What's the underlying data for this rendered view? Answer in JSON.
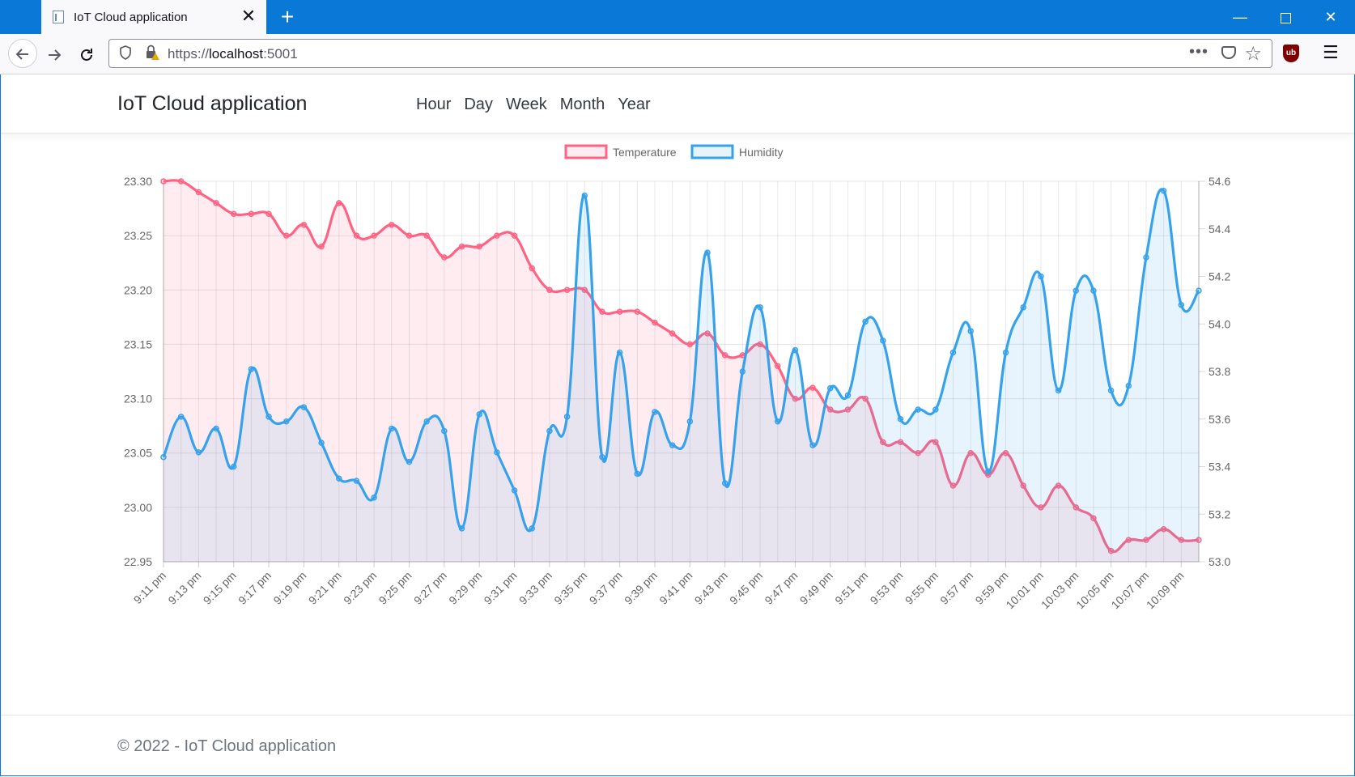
{
  "browser": {
    "tab_title": "IoT Cloud application",
    "tab_close": "✕",
    "new_tab": "+",
    "url_scheme": "https://",
    "url_host": "localhost",
    "url_port": ":5001",
    "window_min": "—",
    "window_close": "✕",
    "ublock_label": "ub"
  },
  "header": {
    "brand": "IoT Cloud application",
    "nav": [
      "Hour",
      "Day",
      "Week",
      "Month",
      "Year"
    ]
  },
  "footer": {
    "text": "© 2022 - IoT Cloud application"
  },
  "chart_data": {
    "type": "line",
    "legend_position": "top-center",
    "grid": true,
    "x_labels": [
      "9:11 pm",
      "9:13 pm",
      "9:15 pm",
      "9:17 pm",
      "9:19 pm",
      "9:21 pm",
      "9:23 pm",
      "9:25 pm",
      "9:27 pm",
      "9:29 pm",
      "9:31 pm",
      "9:33 pm",
      "9:35 pm",
      "9:37 pm",
      "9:39 pm",
      "9:41 pm",
      "9:43 pm",
      "9:45 pm",
      "9:47 pm",
      "9:49 pm",
      "9:51 pm",
      "9:53 pm",
      "9:55 pm",
      "9:57 pm",
      "9:59 pm",
      "10:01 pm",
      "10:03 pm",
      "10:05 pm",
      "10:07 pm",
      "10:09 pm"
    ],
    "y_left": {
      "min": 22.95,
      "max": 23.3,
      "ticks": [
        "23.30",
        "23.25",
        "23.20",
        "23.15",
        "23.10",
        "23.05",
        "23.00",
        "22.95"
      ]
    },
    "y_right": {
      "min": 53.0,
      "max": 54.6,
      "ticks": [
        "54.6",
        "54.4",
        "54.2",
        "54.0",
        "53.8",
        "53.6",
        "53.4",
        "53.2",
        "53.0"
      ]
    },
    "series": [
      {
        "name": "Temperature",
        "axis": "left",
        "color": "#ff6384",
        "fill": "rgba(255,99,132,0.12)",
        "values": [
          23.3,
          23.3,
          23.29,
          23.28,
          23.27,
          23.27,
          23.27,
          23.25,
          23.26,
          23.24,
          23.28,
          23.25,
          23.25,
          23.26,
          23.25,
          23.25,
          23.23,
          23.24,
          23.24,
          23.25,
          23.25,
          23.22,
          23.2,
          23.2,
          23.2,
          23.18,
          23.18,
          23.18,
          23.17,
          23.16,
          23.15,
          23.16,
          23.14,
          23.14,
          23.15,
          23.13,
          23.1,
          23.11,
          23.09,
          23.09,
          23.1,
          23.06,
          23.06,
          23.05,
          23.06,
          23.02,
          23.05,
          23.03,
          23.05,
          23.02,
          23.0,
          23.02,
          23.0,
          22.99,
          22.96,
          22.97,
          22.97,
          22.98,
          22.97,
          22.97
        ]
      },
      {
        "name": "Humidity",
        "axis": "right",
        "color": "#36a2eb",
        "fill": "rgba(54,162,235,0.12)",
        "values": [
          53.44,
          53.61,
          53.46,
          53.56,
          53.4,
          53.81,
          53.61,
          53.59,
          53.65,
          53.5,
          53.35,
          53.34,
          53.27,
          53.56,
          53.42,
          53.59,
          53.55,
          53.14,
          53.62,
          53.46,
          53.3,
          53.14,
          53.55,
          53.61,
          54.54,
          53.44,
          53.88,
          53.37,
          53.63,
          53.49,
          53.59,
          54.3,
          53.33,
          53.8,
          54.07,
          53.59,
          53.89,
          53.49,
          53.73,
          53.7,
          54.01,
          53.93,
          53.6,
          53.64,
          53.64,
          53.88,
          53.97,
          53.38,
          53.88,
          54.07,
          54.2,
          53.72,
          54.14,
          54.14,
          53.72,
          53.74,
          54.28,
          54.56,
          54.08,
          54.14
        ]
      }
    ]
  }
}
